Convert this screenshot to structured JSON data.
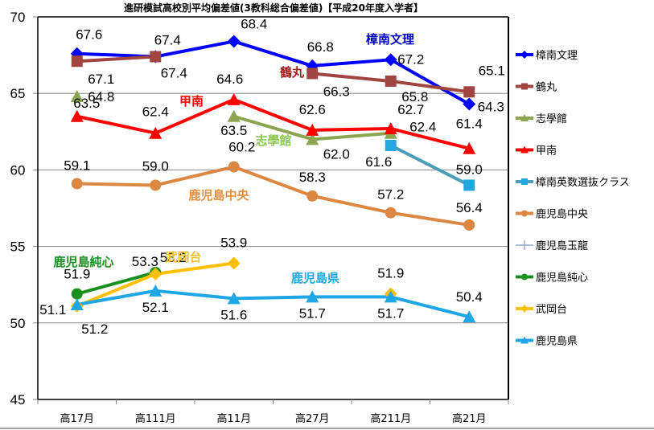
{
  "chart_data": {
    "type": "line",
    "title": "進研模試高校別平均偏差値(3教科総合偏差値)【平成20年度入学者】",
    "xlabel": "",
    "ylabel": "",
    "categories": [
      "高17月",
      "高111月",
      "高11月",
      "高27月",
      "高211月",
      "高21月"
    ],
    "ylim": [
      45,
      70
    ],
    "yticks": [
      "45",
      "50",
      "55",
      "60",
      "65",
      "70"
    ],
    "grid": "horizontal",
    "legend_position": "right",
    "series": [
      {
        "name": "樟南文理",
        "color": "#0000ff",
        "marker": "diamond",
        "values": [
          67.6,
          67.4,
          68.4,
          66.8,
          67.2,
          64.3
        ],
        "labels": [
          "67.6",
          "67.4",
          "68.4",
          "66.8",
          "67.2",
          "64.3"
        ],
        "series_label": "樟南文理"
      },
      {
        "name": "鶴丸",
        "color": "#a0453f",
        "marker": "square",
        "values": [
          67.1,
          67.4,
          null,
          66.3,
          65.8,
          65.1
        ],
        "labels": [
          "67.1",
          "67.4",
          "",
          "66.3",
          "65.8",
          "65.1"
        ],
        "series_label": "鶴丸"
      },
      {
        "name": "志學館",
        "color": "#8ca550",
        "marker": "triangle",
        "values": [
          64.8,
          null,
          63.5,
          62.0,
          62.4,
          null
        ],
        "labels": [
          "64.8",
          "",
          "63.5",
          "62.0",
          "62.4",
          ""
        ],
        "series_label": "志學館"
      },
      {
        "name": "甲南",
        "color": "#ff0000",
        "marker": "triangle",
        "values": [
          63.5,
          62.4,
          64.6,
          62.6,
          62.7,
          61.4
        ],
        "labels": [
          "63.5",
          "62.4",
          "64.6",
          "62.6",
          "62.7",
          "61.4"
        ],
        "series_label": "甲南"
      },
      {
        "name": "樟南英数選抜クラス",
        "color": "#4b9db8",
        "marker_color": "#22a7e0",
        "marker": "square",
        "values": [
          null,
          null,
          null,
          null,
          61.6,
          59.0
        ],
        "labels": [
          "",
          "",
          "",
          "",
          "61.6",
          "59.0"
        ],
        "series_label": ""
      },
      {
        "name": "鹿児島中央",
        "color": "#dc8842",
        "marker": "circle",
        "values": [
          59.1,
          59.0,
          60.2,
          58.3,
          57.2,
          56.4
        ],
        "labels": [
          "59.1",
          "59.0",
          "60.2",
          "58.3",
          "57.2",
          "56.4"
        ],
        "series_label": "鹿児島中央"
      },
      {
        "name": "鹿児島玉龍",
        "color": "#9bb0d0",
        "marker": "plus",
        "values": [
          null,
          null,
          null,
          null,
          null,
          null
        ],
        "labels": [
          "",
          "",
          "",
          "",
          "",
          ""
        ],
        "series_label": ""
      },
      {
        "name": "鹿児島純心",
        "color": "#1a9020",
        "marker": "circle",
        "values": [
          51.9,
          53.3,
          null,
          null,
          null,
          null
        ],
        "labels": [
          "51.9",
          "53.3",
          "",
          "",
          "",
          ""
        ],
        "series_label": "鹿児島純心"
      },
      {
        "name": "武岡台",
        "color": "#ffc000",
        "marker": "diamond",
        "values": [
          51.1,
          53.2,
          53.9,
          null,
          51.9,
          null
        ],
        "labels": [
          "51.1",
          "53.2",
          "53.9",
          "",
          "51.9",
          ""
        ],
        "series_label": "武岡台"
      },
      {
        "name": "鹿児島県",
        "color": "#1ea6e6",
        "marker": "triangle",
        "values": [
          51.2,
          52.1,
          51.6,
          51.7,
          51.7,
          50.4
        ],
        "labels": [
          "51.2",
          "52.1",
          "51.6",
          "51.7",
          "51.7",
          "50.4"
        ],
        "series_label": "鹿児島県"
      }
    ]
  }
}
